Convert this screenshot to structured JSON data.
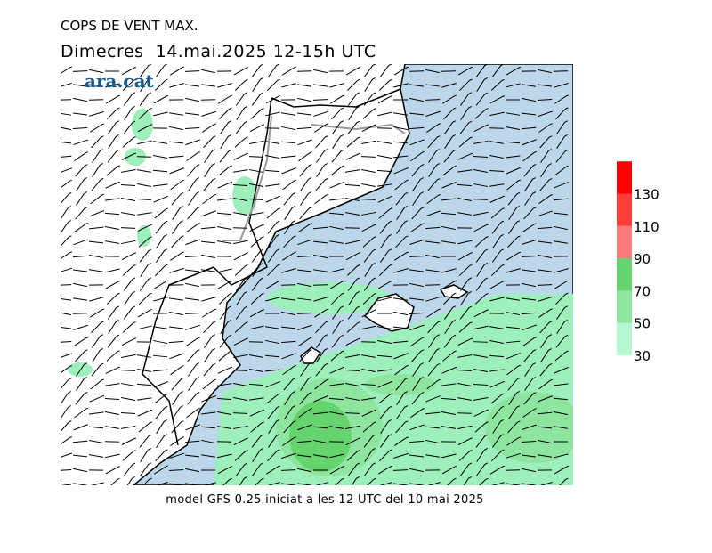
{
  "header": {
    "title": "COPS DE VENT MAX.",
    "subtitle": "Dimecres  14.mai.2025 12-15h UTC",
    "logo": "ara.cat"
  },
  "legend": {
    "ticks": [
      30,
      50,
      70,
      90,
      110,
      130
    ],
    "colors": [
      "#b5f7d0",
      "#8ee5a0",
      "#66d46e",
      "#ff7b7b",
      "#ff3c3c",
      "#ff0000"
    ]
  },
  "footer": "model GFS 0.25 iniciat a les 12 UTC del 10 mai 2025"
}
